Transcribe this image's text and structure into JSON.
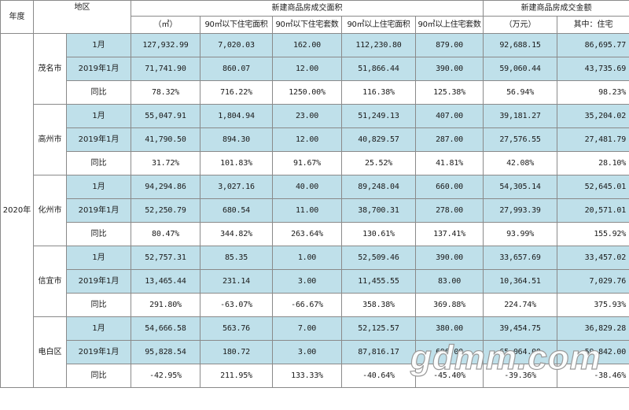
{
  "headers": {
    "year": "年度",
    "region": "地区",
    "area_group": "新建商品房成交面积",
    "amount_group": "新建商品房成交金额",
    "area_unit": "（㎡）",
    "under90_area": "90㎡以下住宅面积",
    "under90_units": "90㎡以下住宅套数",
    "over90_area": "90㎡以上住宅面积",
    "over90_units": "90㎡以上住宅套数",
    "amount_unit": "（万元）",
    "amount_residential": "其中：住宅"
  },
  "year": "2020年",
  "cities": [
    {
      "name": "茂名市",
      "rows": [
        {
          "period": "1月",
          "area": "127,932.99",
          "u90a": "7,020.03",
          "u90n": "162.00",
          "o90a": "112,230.80",
          "o90n": "879.00",
          "amt": "92,688.15",
          "res": "86,695.77"
        },
        {
          "period": "2019年1月",
          "area": "71,741.90",
          "u90a": "860.07",
          "u90n": "12.00",
          "o90a": "51,866.44",
          "o90n": "390.00",
          "amt": "59,060.44",
          "res": "43,735.69"
        },
        {
          "period": "同比",
          "area": "78.32%",
          "u90a": "716.22%",
          "u90n": "1250.00%",
          "o90a": "116.38%",
          "o90n": "125.38%",
          "amt": "56.94%",
          "res": "98.23%"
        }
      ]
    },
    {
      "name": "高州市",
      "rows": [
        {
          "period": "1月",
          "area": "55,047.91",
          "u90a": "1,804.94",
          "u90n": "23.00",
          "o90a": "51,249.13",
          "o90n": "407.00",
          "amt": "39,181.27",
          "res": "35,204.02"
        },
        {
          "period": "2019年1月",
          "area": "41,790.50",
          "u90a": "894.30",
          "u90n": "12.00",
          "o90a": "40,829.57",
          "o90n": "287.00",
          "amt": "27,576.55",
          "res": "27,481.79"
        },
        {
          "period": "同比",
          "area": "31.72%",
          "u90a": "101.83%",
          "u90n": "91.67%",
          "o90a": "25.52%",
          "o90n": "41.81%",
          "amt": "42.08%",
          "res": "28.10%"
        }
      ]
    },
    {
      "name": "化州市",
      "rows": [
        {
          "period": "1月",
          "area": "94,294.86",
          "u90a": "3,027.16",
          "u90n": "40.00",
          "o90a": "89,248.04",
          "o90n": "660.00",
          "amt": "54,305.14",
          "res": "52,645.01"
        },
        {
          "period": "2019年1月",
          "area": "52,250.79",
          "u90a": "680.54",
          "u90n": "11.00",
          "o90a": "38,700.31",
          "o90n": "278.00",
          "amt": "27,993.39",
          "res": "20,571.01"
        },
        {
          "period": "同比",
          "area": "80.47%",
          "u90a": "344.82%",
          "u90n": "263.64%",
          "o90a": "130.61%",
          "o90n": "137.41%",
          "amt": "93.99%",
          "res": "155.92%"
        }
      ]
    },
    {
      "name": "信宜市",
      "rows": [
        {
          "period": "1月",
          "area": "52,757.31",
          "u90a": "85.35",
          "u90n": "1.00",
          "o90a": "52,509.46",
          "o90n": "390.00",
          "amt": "33,657.69",
          "res": "33,457.02"
        },
        {
          "period": "2019年1月",
          "area": "13,465.44",
          "u90a": "231.14",
          "u90n": "3.00",
          "o90a": "11,455.55",
          "o90n": "83.00",
          "amt": "10,364.51",
          "res": "7,029.76"
        },
        {
          "period": "同比",
          "area": "291.80%",
          "u90a": "-63.07%",
          "u90n": "-66.67%",
          "o90a": "358.38%",
          "o90n": "369.88%",
          "amt": "224.74%",
          "res": "375.93%"
        }
      ]
    },
    {
      "name": "电白区",
      "rows": [
        {
          "period": "1月",
          "area": "54,666.58",
          "u90a": "563.76",
          "u90n": "7.00",
          "o90a": "52,125.57",
          "o90n": "380.00",
          "amt": "39,454.75",
          "res": "36,829.28"
        },
        {
          "period": "2019年1月",
          "area": "95,828.54",
          "u90a": "180.72",
          "u90n": "3.00",
          "o90a": "87,816.17",
          "o90n": "696.00",
          "amt": "65,064.00",
          "res": "59,842.00"
        },
        {
          "period": "同比",
          "area": "-42.95%",
          "u90a": "211.95%",
          "u90n": "133.33%",
          "o90a": "-40.64%",
          "o90n": "-45.40%",
          "amt": "-39.36%",
          "res": "-38.46%"
        }
      ]
    }
  ],
  "watermark": "gdmm.com"
}
